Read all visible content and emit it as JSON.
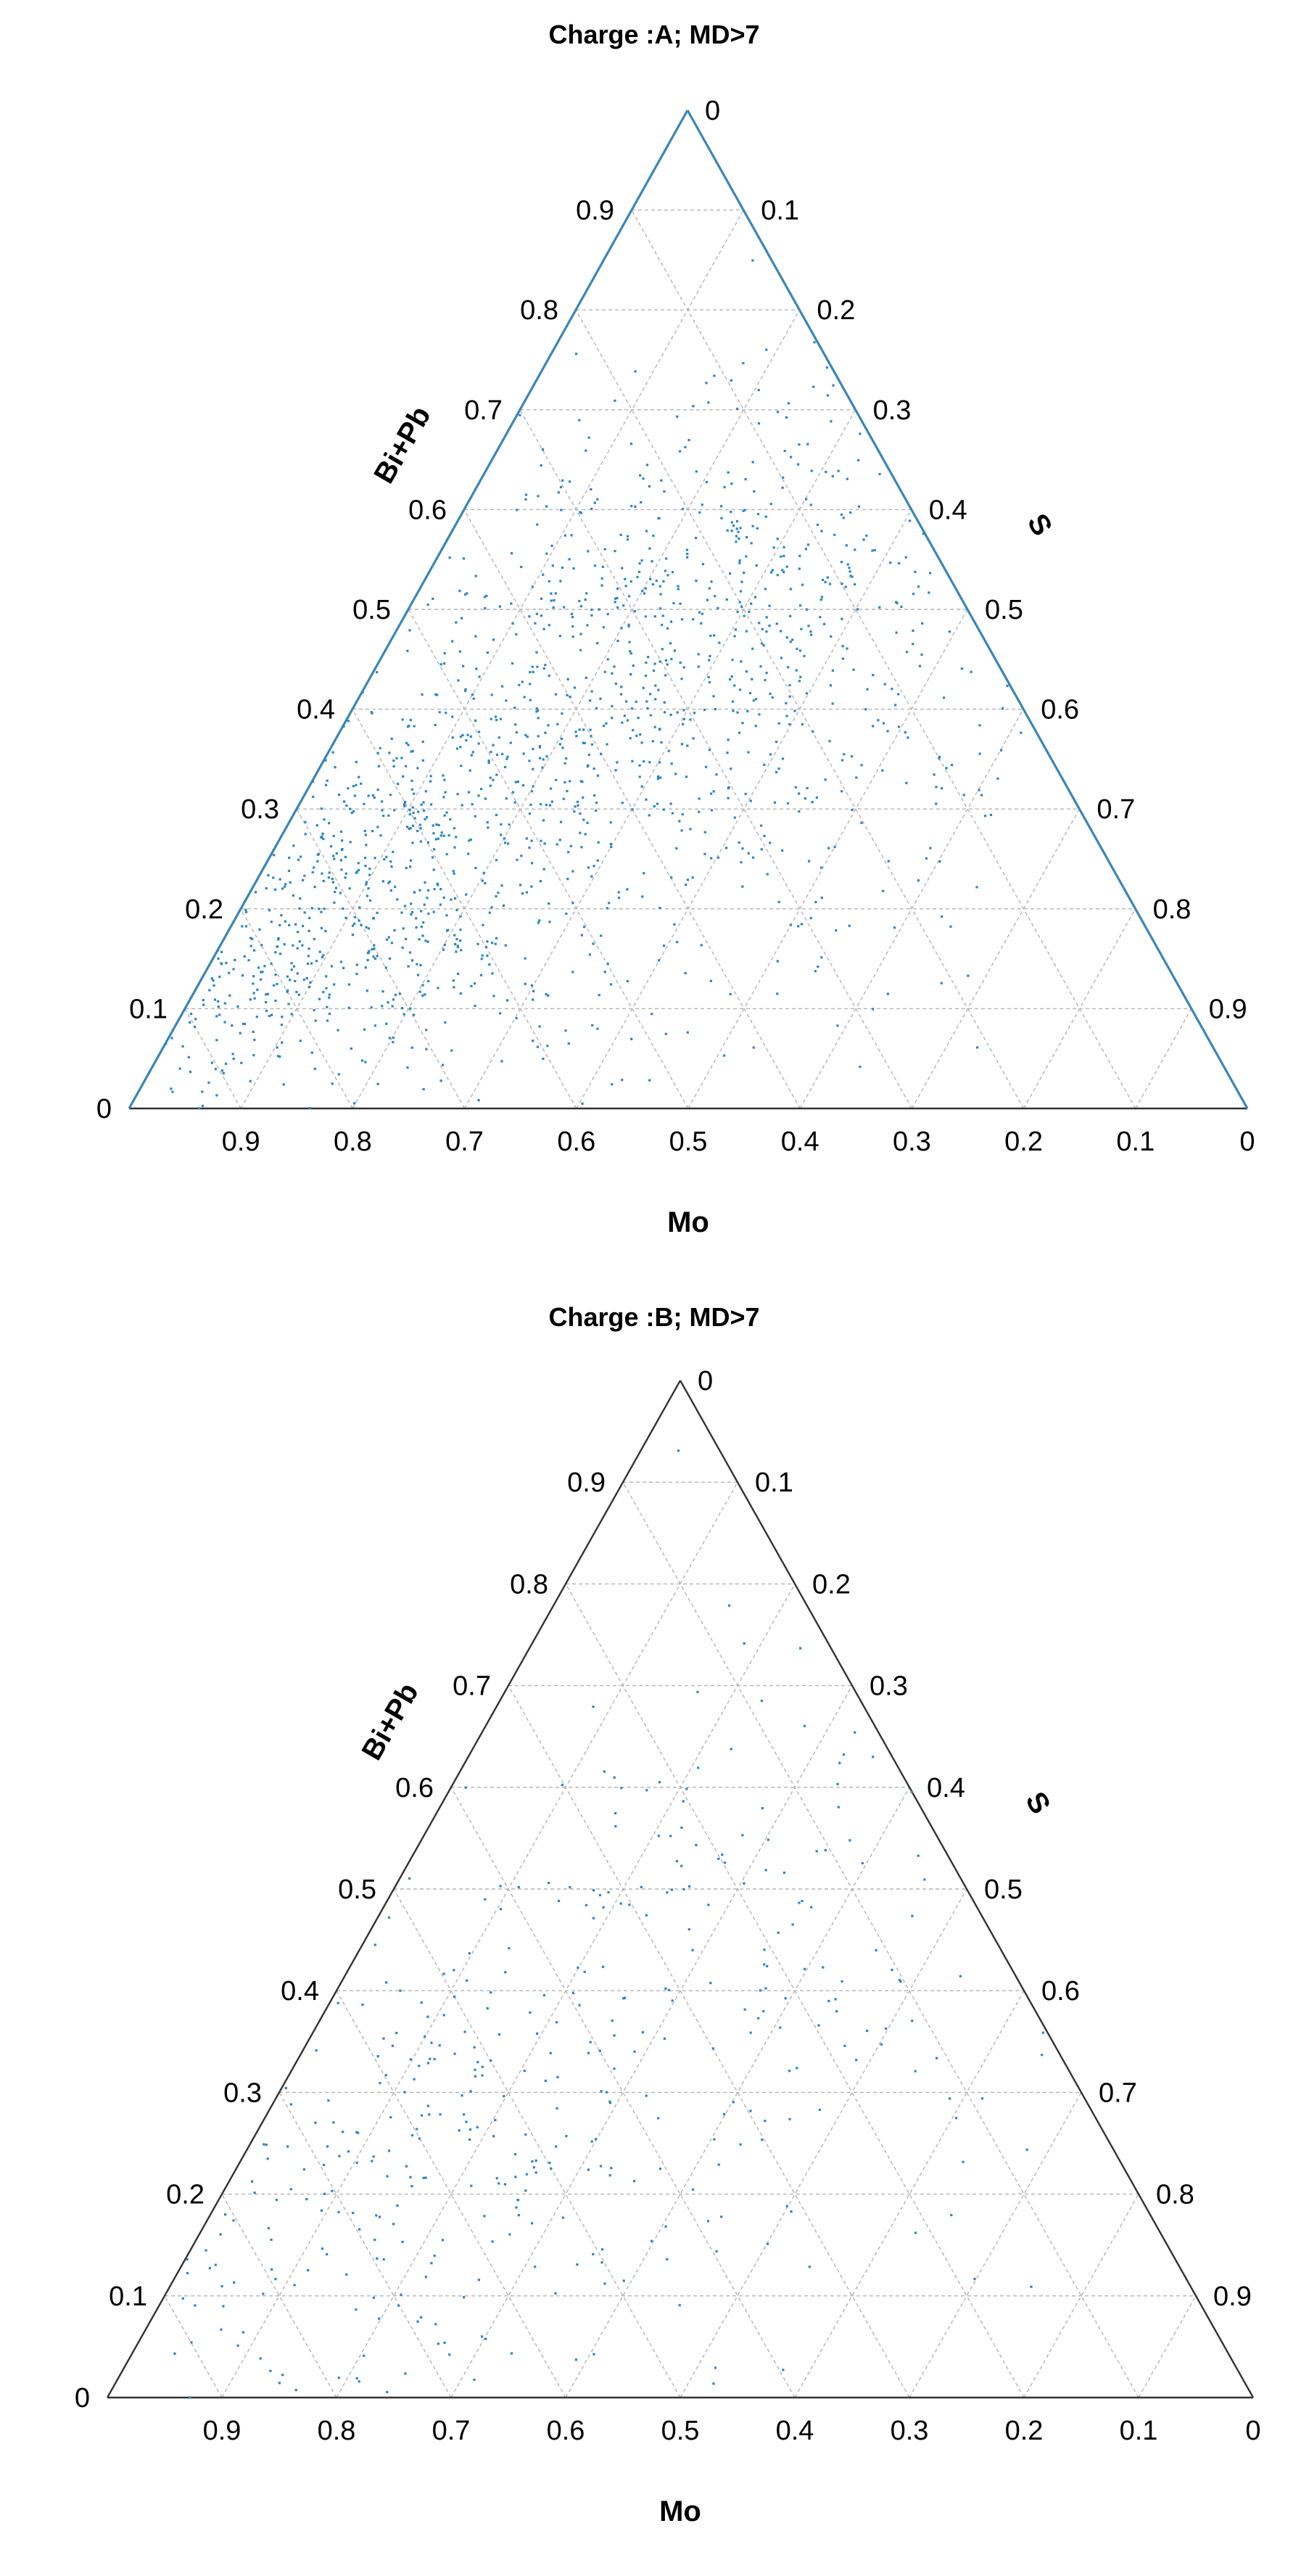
{
  "chart_data": [
    {
      "type": "scatter",
      "subtype": "ternary",
      "title": "Charge :A; MD>7",
      "axes": {
        "bottom": "Mo",
        "left": "Bi+Pb",
        "right": "S"
      },
      "ticks": {
        "bottom": [
          "0.9",
          "0.8",
          "0.7",
          "0.6",
          "0.5",
          "0.4",
          "0.3",
          "0.2",
          "0.1",
          "0"
        ],
        "left": [
          "0",
          "0.1",
          "0.2",
          "0.3",
          "0.4",
          "0.5",
          "0.6",
          "0.7",
          "0.8",
          "0.9"
        ],
        "right": [
          "0",
          "0.1",
          "0.2",
          "0.3",
          "0.4",
          "0.5",
          "0.6",
          "0.7",
          "0.8",
          "0.9"
        ]
      },
      "grid": true,
      "marker_color": "#2e86c1",
      "n_points_approx": 1500,
      "density": [
        {
          "bipb": 0.18,
          "s": 0.06,
          "weight": 0.28,
          "spread": 0.09
        },
        {
          "bipb": 0.35,
          "s": 0.17,
          "weight": 0.27,
          "spread": 0.11
        },
        {
          "bipb": 0.45,
          "s": 0.3,
          "weight": 0.17,
          "spread": 0.11
        },
        {
          "bipb": 0.58,
          "s": 0.22,
          "weight": 0.12,
          "spread": 0.1
        },
        {
          "bipb": 0.3,
          "s": 0.45,
          "weight": 0.08,
          "spread": 0.12
        },
        {
          "bipb": 0.08,
          "s": 0.25,
          "weight": 0.05,
          "spread": 0.08
        },
        {
          "bipb": 0.33,
          "s": 0.33,
          "weight": 0.03,
          "spread": 0.3
        }
      ]
    },
    {
      "type": "scatter",
      "subtype": "ternary",
      "title": "Charge :B; MD>7",
      "axes": {
        "bottom": "Mo",
        "left": "Bi+Pb",
        "right": "S"
      },
      "ticks": {
        "bottom": [
          "0.9",
          "0.8",
          "0.7",
          "0.6",
          "0.5",
          "0.4",
          "0.3",
          "0.2",
          "0.1",
          "0"
        ],
        "left": [
          "0",
          "0.1",
          "0.2",
          "0.3",
          "0.4",
          "0.5",
          "0.6",
          "0.7",
          "0.8",
          "0.9"
        ],
        "right": [
          "0",
          "0.1",
          "0.2",
          "0.3",
          "0.4",
          "0.5",
          "0.6",
          "0.7",
          "0.8",
          "0.9"
        ]
      },
      "grid": true,
      "marker_color": "#2e86c1",
      "n_points_approx": 400,
      "density": [
        {
          "bipb": 0.25,
          "s": 0.1,
          "weight": 0.3,
          "spread": 0.11
        },
        {
          "bipb": 0.45,
          "s": 0.22,
          "weight": 0.3,
          "spread": 0.14
        },
        {
          "bipb": 0.3,
          "s": 0.4,
          "weight": 0.15,
          "spread": 0.14
        },
        {
          "bipb": 0.1,
          "s": 0.2,
          "weight": 0.1,
          "spread": 0.1
        },
        {
          "bipb": 0.33,
          "s": 0.33,
          "weight": 0.15,
          "spread": 0.3
        }
      ]
    }
  ]
}
